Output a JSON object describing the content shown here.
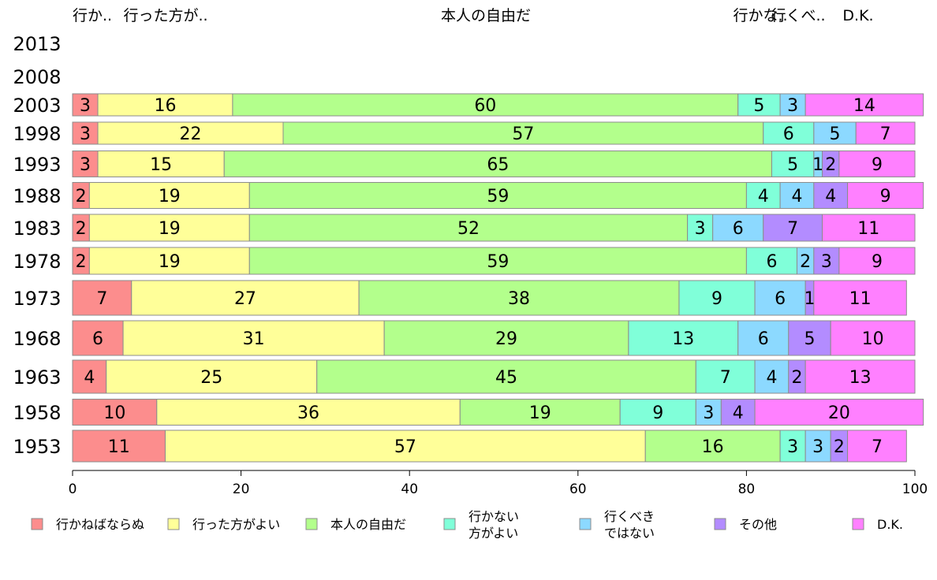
{
  "top_labels": [
    "行か..",
    "行った方が..",
    "本人の自由だ",
    "行かな..",
    "行くべ..",
    "D.K."
  ],
  "legend": [
    {
      "lines": [
        "行かねばならぬ"
      ],
      "color": "#fc8d8d"
    },
    {
      "lines": [
        "行った方がよい"
      ],
      "color": "#ffff99"
    },
    {
      "lines": [
        "本人の自由だ"
      ],
      "color": "#b3ff8c"
    },
    {
      "lines": [
        "行かない",
        "方がよい"
      ],
      "color": "#80ffd9"
    },
    {
      "lines": [
        "行くべき",
        "ではない"
      ],
      "color": "#8cd9ff"
    },
    {
      "lines": [
        "その他"
      ],
      "color": "#b38cff"
    },
    {
      "lines": [
        "D.K."
      ],
      "color": "#ff80ff"
    }
  ],
  "chart_data": {
    "type": "bar",
    "orientation": "horizontal",
    "stacked": true,
    "xlim": [
      0,
      100
    ],
    "x_ticks": [
      "0",
      "20",
      "40",
      "60",
      "80",
      "100"
    ],
    "categories": [
      "2013",
      "2008",
      "2003",
      "1998",
      "1993",
      "1988",
      "1983",
      "1978",
      "1973",
      "1968",
      "1963",
      "1958",
      "1953"
    ],
    "series": [
      {
        "name": "行かねばならぬ",
        "color": "#fc8d8d",
        "values": [
          null,
          null,
          3,
          3,
          3,
          2,
          2,
          2,
          7,
          6,
          4,
          10,
          11
        ]
      },
      {
        "name": "行った方がよい",
        "color": "#ffff99",
        "values": [
          null,
          null,
          16,
          22,
          15,
          19,
          19,
          19,
          27,
          31,
          25,
          36,
          57
        ]
      },
      {
        "name": "本人の自由だ",
        "color": "#b3ff8c",
        "values": [
          null,
          null,
          60,
          57,
          65,
          59,
          52,
          59,
          38,
          29,
          45,
          19,
          16
        ]
      },
      {
        "name": "行かない方がよい",
        "color": "#80ffd9",
        "values": [
          null,
          null,
          5,
          6,
          5,
          4,
          3,
          6,
          9,
          13,
          7,
          9,
          3
        ]
      },
      {
        "name": "行くべきではない",
        "color": "#8cd9ff",
        "values": [
          null,
          null,
          3,
          5,
          1,
          4,
          6,
          2,
          6,
          6,
          4,
          3,
          3
        ]
      },
      {
        "name": "その他",
        "color": "#b38cff",
        "values": [
          null,
          null,
          0,
          0,
          2,
          4,
          7,
          3,
          1,
          5,
          2,
          4,
          2
        ]
      },
      {
        "name": "D.K.",
        "color": "#ff80ff",
        "values": [
          null,
          null,
          14,
          7,
          9,
          9,
          11,
          9,
          11,
          10,
          13,
          20,
          7
        ]
      }
    ]
  }
}
